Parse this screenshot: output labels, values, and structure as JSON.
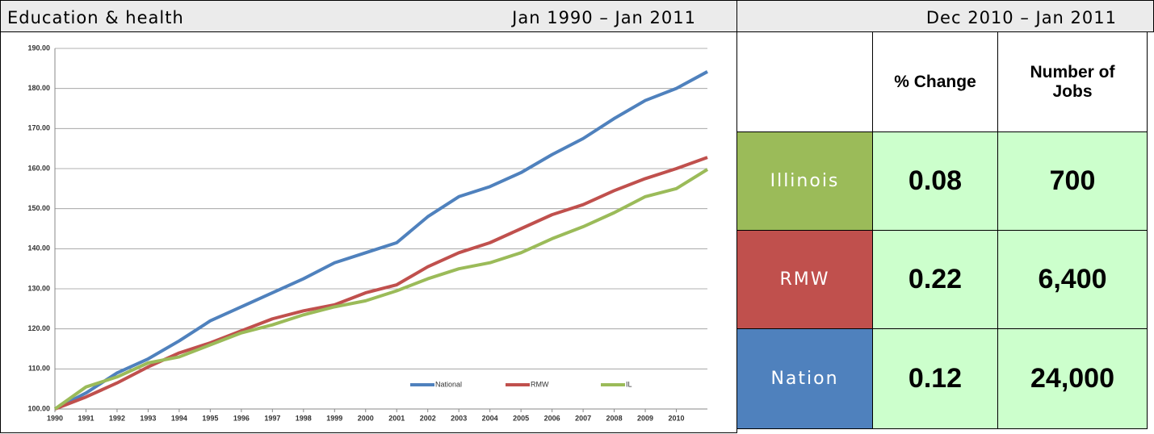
{
  "chart_data": {
    "type": "line",
    "title": "Education & health",
    "subtitle": "Jan 1990 – Jan 2011",
    "x": [
      1990,
      1991,
      1992,
      1993,
      1994,
      1995,
      1996,
      1997,
      1998,
      1999,
      2000,
      2001,
      2002,
      2003,
      2004,
      2005,
      2006,
      2007,
      2008,
      2009,
      2010,
      2011
    ],
    "xlim": [
      1990,
      2011
    ],
    "xticks": [
      1990,
      1991,
      1992,
      1993,
      1994,
      1995,
      1996,
      1997,
      1998,
      1999,
      2000,
      2001,
      2002,
      2003,
      2004,
      2005,
      2006,
      2007,
      2008,
      2009,
      2010
    ],
    "ylim": [
      100,
      190
    ],
    "yticks": [
      {
        "value": 100,
        "label": "100.00"
      },
      {
        "value": 110,
        "label": "110.00"
      },
      {
        "value": 120,
        "label": "120.00"
      },
      {
        "value": 130,
        "label": "130.00"
      },
      {
        "value": 140,
        "label": "140.00"
      },
      {
        "value": 150,
        "label": "150.00"
      },
      {
        "value": 160,
        "label": "160.00"
      },
      {
        "value": 170,
        "label": "170.00"
      },
      {
        "value": 180,
        "label": "180.00"
      },
      {
        "value": 190,
        "label": "190.00"
      }
    ],
    "grid": true,
    "legend": "bottom",
    "series": [
      {
        "name": "National",
        "color": "#4f81bd",
        "values": [
          100,
          104,
          109,
          112.5,
          117,
          122,
          125.5,
          129,
          132.5,
          136.5,
          139,
          141.5,
          148,
          153,
          155.5,
          159,
          163.5,
          167.5,
          172.5,
          177,
          180,
          184.2
        ]
      },
      {
        "name": "RMW",
        "color": "#c0504d",
        "values": [
          100,
          103,
          106.5,
          110.5,
          114,
          116.5,
          119.5,
          122.5,
          124.5,
          126,
          129,
          131,
          135.5,
          139,
          141.5,
          145,
          148.5,
          151,
          154.5,
          157.5,
          160,
          162.8
        ]
      },
      {
        "name": "IL",
        "color": "#9bbb59",
        "values": [
          100,
          105.5,
          108,
          111.5,
          113,
          116,
          119,
          121,
          123.5,
          125.5,
          127,
          129.5,
          132.5,
          135,
          136.5,
          139,
          142.5,
          145.5,
          149,
          153,
          155,
          159.8
        ]
      }
    ]
  },
  "table": {
    "period": "Dec 2010 – Jan 2011",
    "columns": [
      "% Change",
      "Number of Jobs"
    ],
    "rows": [
      [
        "Illinois",
        "0.08",
        "700"
      ],
      [
        "RMW",
        "0.22",
        "6,400"
      ],
      [
        "Nation",
        "0.12",
        "24,000"
      ]
    ]
  }
}
